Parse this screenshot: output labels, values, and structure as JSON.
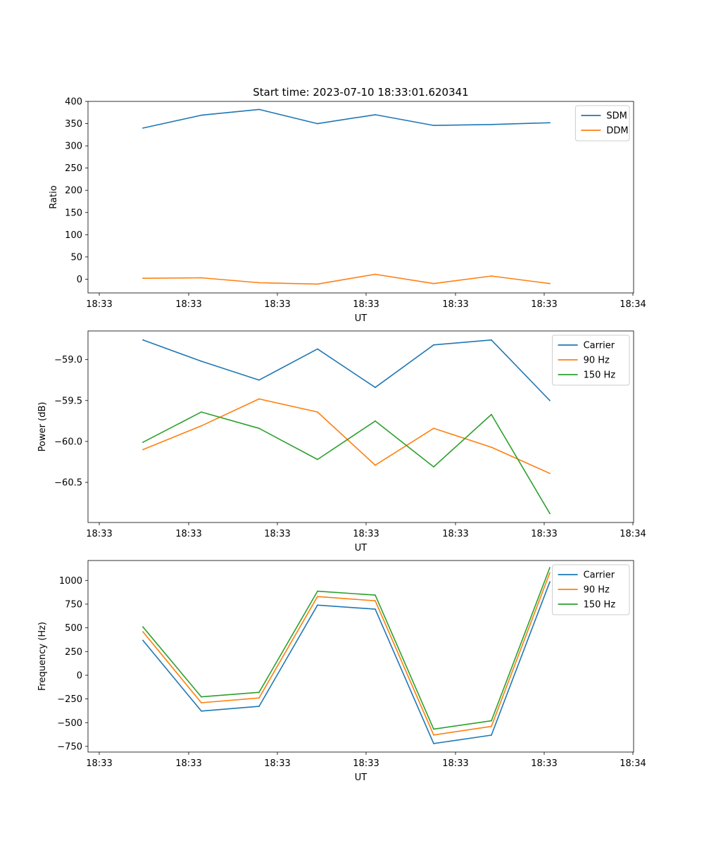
{
  "colors": {
    "blue": "#1f77b4",
    "orange": "#ff7f0e",
    "green": "#2ca02c"
  },
  "chart_data": [
    {
      "type": "line",
      "title": "Start time: 2023-07-10 18:33:01.620341",
      "xlabel": "UT",
      "ylabel": "Ratio",
      "x_ticks": [
        "18:33",
        "18:33",
        "18:33",
        "18:33",
        "18:33",
        "18:33",
        "18:34"
      ],
      "y_ticks": [
        "0",
        "50",
        "100",
        "150",
        "200",
        "250",
        "300",
        "350",
        "400"
      ],
      "y_tick_values": [
        0,
        50,
        100,
        150,
        200,
        250,
        300,
        350,
        400
      ],
      "ylim": [
        -31,
        400
      ],
      "legend_loc": "upper right",
      "series": [
        {
          "name": "SDM",
          "color": "#1f77b4",
          "values": [
            340,
            369,
            382,
            350,
            370,
            346,
            348,
            352
          ]
        },
        {
          "name": "DDM",
          "color": "#ff7f0e",
          "values": [
            2,
            3,
            -8,
            -11,
            11,
            -10,
            7,
            -10
          ]
        }
      ]
    },
    {
      "type": "line",
      "title": "",
      "xlabel": "UT",
      "ylabel": "Power (dB)",
      "x_ticks": [
        "18:33",
        "18:33",
        "18:33",
        "18:33",
        "18:33",
        "18:33",
        "18:34"
      ],
      "y_ticks": [
        "−60.5",
        "−60.0",
        "−59.5",
        "−59.0"
      ],
      "y_tick_values": [
        -60.5,
        -60.0,
        -59.5,
        -59.0
      ],
      "ylim": [
        -60.99,
        -58.65
      ],
      "legend_loc": "upper right",
      "series": [
        {
          "name": "Carrier",
          "color": "#1f77b4",
          "values": [
            -58.76,
            -59.02,
            -59.25,
            -58.87,
            -59.34,
            -58.82,
            -58.76,
            -59.5
          ]
        },
        {
          "name": "90 Hz",
          "color": "#ff7f0e",
          "values": [
            -60.1,
            -59.81,
            -59.48,
            -59.64,
            -60.29,
            -59.84,
            -60.07,
            -60.39
          ]
        },
        {
          "name": "150 Hz",
          "color": "#2ca02c",
          "values": [
            -60.01,
            -59.64,
            -59.84,
            -60.22,
            -59.75,
            -60.31,
            -59.67,
            -60.88
          ]
        }
      ]
    },
    {
      "type": "line",
      "title": "",
      "xlabel": "UT",
      "ylabel": "Frequency (Hz)",
      "x_ticks": [
        "18:33",
        "18:33",
        "18:33",
        "18:33",
        "18:33",
        "18:33",
        "18:34"
      ],
      "y_ticks": [
        "−750",
        "−500",
        "−250",
        "0",
        "250",
        "500",
        "750",
        "1000"
      ],
      "y_tick_values": [
        -750,
        -500,
        -250,
        0,
        250,
        500,
        750,
        1000
      ],
      "ylim": [
        -810,
        1210
      ],
      "legend_loc": "upper right",
      "series": [
        {
          "name": "Carrier",
          "color": "#1f77b4",
          "values": [
            368,
            -378,
            -328,
            740,
            697,
            -720,
            -632,
            985
          ]
        },
        {
          "name": "90 Hz",
          "color": "#ff7f0e",
          "values": [
            459,
            -290,
            -240,
            830,
            785,
            -630,
            -540,
            1080
          ]
        },
        {
          "name": "150 Hz",
          "color": "#2ca02c",
          "values": [
            510,
            -228,
            -180,
            886,
            845,
            -568,
            -480,
            1135
          ]
        }
      ]
    }
  ]
}
